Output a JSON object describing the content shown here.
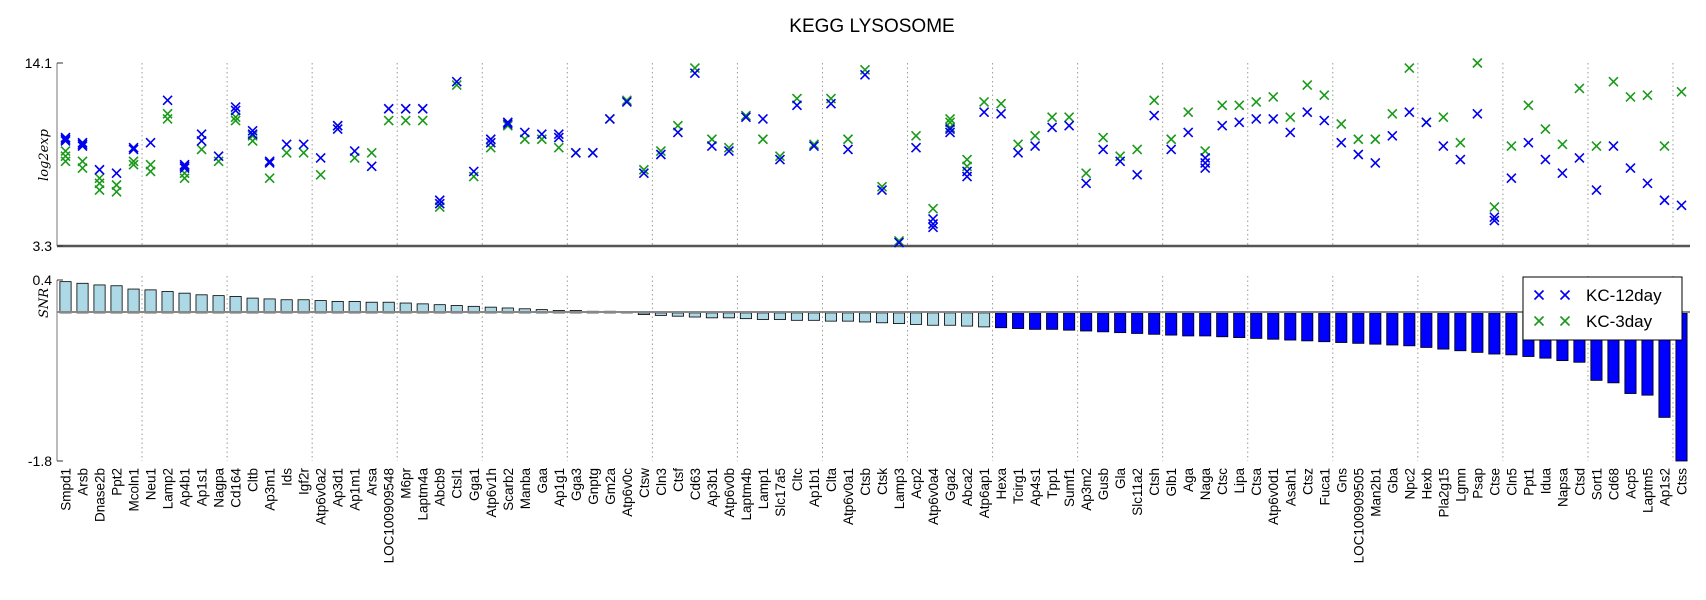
{
  "chart_data": {
    "type": "scatter",
    "title": "KEGG LYSOSOME",
    "panels": [
      {
        "name": "expression",
        "ylabel": "log2exp",
        "ylim": [
          3.3,
          14.1
        ],
        "ytick_labels": [
          "14.1",
          "3.3"
        ]
      },
      {
        "name": "snr",
        "ylabel": "SNR",
        "ylim": [
          -1.8,
          0.4
        ],
        "ytick_labels": [
          "0.4",
          "-1.8"
        ]
      }
    ],
    "legend": {
      "position": "right",
      "entries": [
        "KC-12day",
        "KC-3day"
      ]
    },
    "colors": {
      "kc12": "#0000ee",
      "kc3": "#1a9a1a",
      "pos_bar": "#add8e6",
      "neg_bar": "#0000ff"
    },
    "grid": "vertical dotted lines every 5 genes",
    "genes": [
      "Smpd1",
      "Arsb",
      "Dnase2b",
      "Ppt2",
      "Mcoln1",
      "Neu1",
      "Lamp2",
      "Ap4b1",
      "Ap1s1",
      "Nagpa",
      "Cd164",
      "Cltb",
      "Ap3m1",
      "Ids",
      "Igf2r",
      "Atp6v0a2",
      "Ap3d1",
      "Ap1m1",
      "Arsa",
      "LOC100909548",
      "M6pr",
      "Laptm4a",
      "Abcb9",
      "Ctsl1",
      "Gga1",
      "Atp6v1h",
      "Scarb2",
      "Manba",
      "Gaa",
      "Ap1g1",
      "Gga3",
      "Gnptg",
      "Gm2a",
      "Atp6v0c",
      "Ctsw",
      "Cln3",
      "Ctsf",
      "Cd63",
      "Ap3b1",
      "Atp6v0b",
      "Laptm4b",
      "Lamp1",
      "Slc17a5",
      "Cltc",
      "Ap1b1",
      "Clta",
      "Atp6v0a1",
      "Ctsb",
      "Ctsk",
      "Lamp3",
      "Acp2",
      "Atp6v0a4",
      "Gga2",
      "Abca2",
      "Atp6ap1",
      "Hexa",
      "Tcirg1",
      "Ap4s1",
      "Tpp1",
      "Sumf1",
      "Ap3m2",
      "Gusb",
      "Gla",
      "Slc11a2",
      "Ctsh",
      "Glb1",
      "Aga",
      "Naga",
      "Ctsc",
      "Lipa",
      "Ctsa",
      "Atp6v0d1",
      "Asah1",
      "Ctsz",
      "Fuca1",
      "Gns",
      "LOC100909505",
      "Man2b1",
      "Gba",
      "Npc2",
      "Hexb",
      "Pla2g15",
      "Lgmn",
      "Psap",
      "Ctse",
      "Cln5",
      "Ppt1",
      "Idua",
      "Napsa",
      "Ctsd",
      "Sort1",
      "Cd68",
      "Acp5",
      "Laptm5",
      "Ap1s2",
      "Ctss"
    ],
    "snr": [
      0.38,
      0.36,
      0.34,
      0.33,
      0.29,
      0.28,
      0.26,
      0.24,
      0.22,
      0.21,
      0.2,
      0.18,
      0.17,
      0.16,
      0.16,
      0.15,
      0.14,
      0.14,
      0.13,
      0.13,
      0.12,
      0.11,
      0.1,
      0.09,
      0.08,
      0.07,
      0.06,
      0.05,
      0.04,
      0.03,
      0.03,
      0.02,
      0.02,
      0.01,
      -0.02,
      -0.03,
      -0.04,
      -0.05,
      -0.06,
      -0.06,
      -0.07,
      -0.08,
      -0.08,
      -0.09,
      -0.09,
      -0.1,
      -0.1,
      -0.11,
      -0.12,
      -0.13,
      -0.14,
      -0.15,
      -0.15,
      -0.16,
      -0.17,
      -0.18,
      -0.19,
      -0.2,
      -0.2,
      -0.21,
      -0.22,
      -0.23,
      -0.24,
      -0.25,
      -0.26,
      -0.27,
      -0.28,
      -0.28,
      -0.29,
      -0.3,
      -0.31,
      -0.32,
      -0.33,
      -0.34,
      -0.35,
      -0.36,
      -0.37,
      -0.38,
      -0.39,
      -0.4,
      -0.42,
      -0.44,
      -0.46,
      -0.48,
      -0.5,
      -0.51,
      -0.53,
      -0.55,
      -0.58,
      -0.6,
      -0.82,
      -0.85,
      -0.98,
      -1.0,
      -1.27,
      -1.8
    ],
    "expr_kc12": [
      [
        9.5,
        9.6,
        9.7
      ],
      [
        9.2,
        9.3,
        9.4
      ],
      [
        7.8
      ],
      [
        7.6
      ],
      [
        9.0,
        9.1
      ],
      [
        9.4
      ],
      [
        11.9
      ],
      [
        7.9,
        8.0,
        8.1
      ],
      [
        9.5,
        9.9
      ],
      [
        8.6
      ],
      [
        11.3,
        11.5
      ],
      [
        9.9,
        10.1
      ],
      [
        8.2,
        8.3
      ],
      [
        9.3
      ],
      [
        9.3
      ],
      [
        8.5
      ],
      [
        10.2,
        10.4
      ],
      [
        8.9
      ],
      [
        8.0
      ],
      [
        11.4
      ],
      [
        11.4
      ],
      [
        11.4
      ],
      [
        5.8,
        6.0
      ],
      [
        13.0
      ],
      [
        7.7
      ],
      [
        9.4,
        9.6
      ],
      [
        10.5,
        10.6
      ],
      [
        10.0
      ],
      [
        9.9
      ],
      [
        9.7,
        9.9
      ],
      [
        8.8
      ],
      [
        8.8
      ],
      [
        10.8
      ],
      [
        11.8
      ],
      [
        7.6
      ],
      [
        8.7
      ],
      [
        10.0
      ],
      [
        13.5
      ],
      [
        9.2
      ],
      [
        8.9
      ],
      [
        10.9
      ],
      [
        10.8
      ],
      [
        8.4
      ],
      [
        11.6
      ],
      [
        9.2
      ],
      [
        11.7
      ],
      [
        9.0
      ],
      [
        13.4
      ],
      [
        6.6
      ],
      [
        3.5
      ],
      [
        9.1
      ],
      [
        4.4,
        4.6,
        4.9
      ],
      [
        10.0,
        10.2
      ],
      [
        7.4,
        7.7
      ],
      [
        11.2
      ],
      [
        11.1
      ],
      [
        8.8
      ],
      [
        9.2
      ],
      [
        10.3
      ],
      [
        10.4
      ],
      [
        7.0
      ],
      [
        9.0
      ],
      [
        8.3
      ],
      [
        7.5
      ],
      [
        11.0
      ],
      [
        9.0
      ],
      [
        10.0
      ],
      [
        7.9,
        8.2,
        8.5
      ],
      [
        10.4
      ],
      [
        10.6
      ],
      [
        10.8
      ],
      [
        10.8
      ],
      [
        10.0
      ],
      [
        11.2
      ],
      [
        10.7
      ],
      [
        9.4
      ],
      [
        8.7
      ],
      [
        8.2
      ],
      [
        9.8
      ],
      [
        11.2
      ],
      [
        10.6
      ],
      [
        9.2
      ],
      [
        8.4
      ],
      [
        11.1
      ],
      [
        4.8,
        5.0
      ],
      [
        7.3
      ],
      [
        9.4
      ],
      [
        8.4
      ],
      [
        7.6
      ],
      [
        8.5
      ],
      [
        6.6
      ],
      [
        9.2
      ],
      [
        7.9
      ],
      [
        7.0
      ],
      [
        6.0
      ],
      [
        5.7
      ]
    ],
    "expr_kc3": [
      [
        8.3,
        8.6,
        8.9
      ],
      [
        7.9,
        8.3
      ],
      [
        6.6,
        7.0,
        7.3
      ],
      [
        6.5,
        6.9
      ],
      [
        8.1,
        8.3
      ],
      [
        7.7,
        8.1
      ],
      [
        10.8,
        11.1
      ],
      [
        7.3,
        7.6
      ],
      [
        9.0
      ],
      [
        8.3
      ],
      [
        10.7,
        10.9
      ],
      [
        9.5,
        9.8
      ],
      [
        7.3
      ],
      [
        8.8
      ],
      [
        8.8
      ],
      [
        7.5
      ],
      [
        10.4
      ],
      [
        8.5
      ],
      [
        8.8
      ],
      [
        10.7
      ],
      [
        10.7
      ],
      [
        10.7
      ],
      [
        5.6
      ],
      [
        12.8
      ],
      [
        7.4
      ],
      [
        9.1
      ],
      [
        10.4
      ],
      [
        9.6
      ],
      [
        9.6
      ],
      [
        9.1
      ],
      [
        8.8
      ],
      [
        8.8
      ],
      [
        10.8
      ],
      [
        11.9
      ],
      [
        7.8
      ],
      [
        8.9
      ],
      [
        10.4
      ],
      [
        13.8
      ],
      [
        9.6
      ],
      [
        9.1
      ],
      [
        11.0
      ],
      [
        9.6
      ],
      [
        8.6
      ],
      [
        12.0
      ],
      [
        9.3
      ],
      [
        12.0
      ],
      [
        9.6
      ],
      [
        13.7
      ],
      [
        6.8
      ],
      [
        3.6
      ],
      [
        9.8
      ],
      [
        5.5
      ],
      [
        10.3,
        10.6,
        10.8
      ],
      [
        8.0,
        8.4
      ],
      [
        11.8
      ],
      [
        11.7
      ],
      [
        9.3
      ],
      [
        9.8
      ],
      [
        10.9
      ],
      [
        10.9
      ],
      [
        7.6
      ],
      [
        9.7
      ],
      [
        8.6
      ],
      [
        9.0
      ],
      [
        11.9
      ],
      [
        9.6
      ],
      [
        11.2
      ],
      [
        8.9
      ],
      [
        11.6
      ],
      [
        11.6
      ],
      [
        11.8
      ],
      [
        12.1
      ],
      [
        10.9
      ],
      [
        12.8
      ],
      [
        12.2
      ],
      [
        10.5
      ],
      [
        9.6
      ],
      [
        9.6
      ],
      [
        11.1
      ],
      [
        13.8
      ],
      [
        10.6
      ],
      [
        10.9
      ],
      [
        9.4
      ],
      [
        14.1
      ],
      [
        5.6
      ],
      [
        9.2
      ],
      [
        11.6
      ],
      [
        10.2
      ],
      [
        9.3
      ],
      [
        12.6
      ],
      [
        9.2
      ],
      [
        13.0
      ],
      [
        12.1
      ],
      [
        12.2
      ],
      [
        9.2
      ],
      [
        12.4
      ]
    ]
  }
}
